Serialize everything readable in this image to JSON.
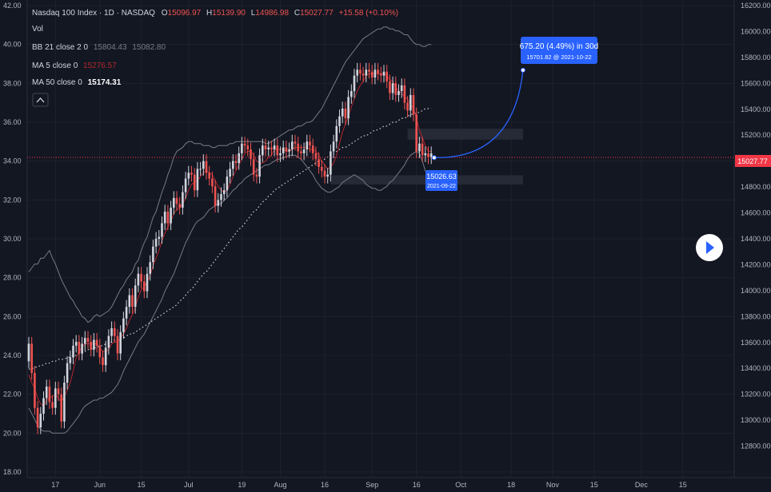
{
  "header": {
    "symbol": "Nasdaq 100 Index · 1D · NASDAQ",
    "ohlc": {
      "o_label": "O",
      "o": "15096.97",
      "h_label": "H",
      "h": "15139.90",
      "l_label": "L",
      "l": "14986.98",
      "c_label": "C",
      "c": "15027.77",
      "change": "+15.58 (+0.10%)"
    },
    "vol_label": "Vol",
    "bb": {
      "label": "BB 21 close 2 0",
      "v1": "15804.43",
      "v2": "15082.80"
    },
    "ma5": {
      "label": "MA 5 close 0",
      "value": "15276.57"
    },
    "ma50": {
      "label": "MA 50 close 0",
      "value": "15174.31"
    }
  },
  "colors": {
    "background": "#131722",
    "up": "#d1d4dc",
    "down": "#ef5350",
    "bb_band": "#787b86",
    "ma5": "#b2262c",
    "ma50": "#d1d4dc",
    "projection": "#2962ff",
    "price_tag": "#f23645"
  },
  "annotations": {
    "projection_title": "675.20 (4.49%) in 30d",
    "projection_sub": "15701.82 @ 2021-10-22",
    "point_value": "15026.63",
    "point_date": "2021-09-22",
    "last_price": "15027.77"
  },
  "chart_data": {
    "type": "candlestick",
    "left_axis": {
      "min": 18.0,
      "max": 42.0,
      "ticks": [
        "18.00",
        "20.00",
        "22.00",
        "24.00",
        "26.00",
        "28.00",
        "30.00",
        "32.00",
        "34.00",
        "36.00",
        "38.00",
        "40.00",
        "42.00"
      ]
    },
    "right_axis": {
      "min": 12600,
      "max": 16200,
      "ticks": [
        "12800.00",
        "13000.00",
        "13200.00",
        "13400.00",
        "13600.00",
        "13800.00",
        "14000.00",
        "14200.00",
        "14400.00",
        "14600.00",
        "14800.00",
        "15000.00",
        "15200.00",
        "15400.00",
        "15600.00",
        "15800.00",
        "16000.00",
        "16200.00"
      ]
    },
    "x_axis": {
      "ticks": [
        {
          "label": "17",
          "day": 9
        },
        {
          "label": "Jun",
          "day": 24
        },
        {
          "label": "15",
          "day": 38
        },
        {
          "label": "Jul",
          "day": 54
        },
        {
          "label": "19",
          "day": 72
        },
        {
          "label": "Aug",
          "day": 85
        },
        {
          "label": "16",
          "day": 100
        },
        {
          "label": "Sep",
          "day": 116
        },
        {
          "label": "16",
          "day": 131
        },
        {
          "label": "Oct",
          "day": 146
        },
        {
          "label": "18",
          "day": 163
        },
        {
          "label": "Nov",
          "day": 177
        },
        {
          "label": "15",
          "day": 191
        },
        {
          "label": "Dec",
          "day": 207
        },
        {
          "label": "15",
          "day": 221
        }
      ]
    },
    "last_day": 137,
    "closes": [
      24.6,
      23.1,
      21.3,
      20.3,
      21.0,
      21.8,
      22.4,
      21.6,
      21.3,
      22.3,
      22.0,
      20.6,
      22.6,
      23.6,
      23.9,
      24.5,
      24.7,
      24.1,
      24.6,
      24.9,
      24.7,
      24.3,
      24.8,
      24.5,
      23.9,
      23.5,
      24.4,
      25.0,
      25.4,
      25.0,
      24.1,
      25.2,
      25.9,
      26.5,
      27.1,
      26.5,
      27.6,
      28.2,
      27.8,
      27.3,
      28.2,
      28.8,
      29.6,
      30.0,
      30.1,
      30.8,
      31.4,
      30.8,
      31.6,
      32.1,
      31.8,
      31.6,
      32.4,
      33.1,
      33.4,
      33.3,
      32.5,
      33.6,
      33.6,
      34.0,
      33.4,
      33.1,
      32.7,
      31.7,
      32.0,
      32.3,
      32.5,
      33.2,
      33.6,
      34.0,
      33.9,
      34.4,
      34.9,
      34.8,
      34.6,
      34.1,
      33.3,
      33.2,
      34.3,
      34.8,
      34.6,
      34.7,
      34.6,
      34.8,
      34.3,
      34.4,
      34.7,
      34.5,
      34.6,
      35.0,
      34.9,
      34.5,
      34.4,
      34.6,
      35.0,
      34.8,
      34.4,
      34.1,
      33.7,
      33.5,
      33.2,
      33.3,
      34.5,
      35.0,
      35.8,
      36.3,
      36.7,
      36.2,
      37.3,
      37.6,
      38.4,
      38.7,
      38.5,
      38.4,
      38.7,
      38.6,
      38.3,
      38.7,
      38.5,
      38.4,
      38.6,
      38.1,
      37.5,
      38.0,
      37.4,
      37.6,
      37.9,
      37.0,
      36.6,
      37.4,
      36.4,
      34.5,
      34.9,
      34.3,
      34.4,
      34.2,
      34.4
    ],
    "bb_upper": [
      28.3,
      28.5,
      28.7,
      28.7,
      29.0,
      29.0,
      29.2,
      29.4,
      29.0,
      28.7,
      28.3,
      27.9,
      27.6,
      27.3,
      27.0,
      26.8,
      26.5,
      26.3,
      26.0,
      25.9,
      25.7,
      25.8,
      26.0,
      26.1,
      26.0,
      26.1,
      26.2,
      26.3,
      26.5,
      26.8,
      27.1,
      27.4,
      27.6,
      27.9,
      28.1,
      28.3,
      28.7,
      28.9,
      29.4,
      29.8,
      30.1,
      30.6,
      31.1,
      31.4,
      31.9,
      32.4,
      32.8,
      33.3,
      33.7,
      34.2,
      34.5,
      34.6,
      34.7,
      34.9,
      35.0,
      35.0,
      34.9,
      34.9,
      34.9,
      34.8,
      34.8,
      34.8,
      34.7,
      34.7,
      34.8,
      34.8,
      34.8,
      34.8,
      34.9,
      34.9,
      35.0,
      35.0,
      35.0,
      35.0,
      35.0,
      35.0,
      35.0,
      35.0,
      35.0,
      35.0,
      34.9,
      34.9,
      35.0,
      35.1,
      35.2,
      35.3,
      35.4,
      35.5,
      35.6,
      35.6,
      35.7,
      35.8,
      35.8,
      35.9,
      36.0,
      36.0,
      36.1,
      36.3,
      36.5,
      36.7,
      37.0,
      37.3,
      37.6,
      37.9,
      38.2,
      38.5,
      38.8,
      39.1,
      39.3,
      39.5,
      39.7,
      39.9,
      40.1,
      40.3,
      40.4,
      40.5,
      40.6,
      40.7,
      40.8,
      40.8,
      40.9,
      40.9,
      40.8,
      40.8,
      40.7,
      40.7,
      40.6,
      40.5,
      40.5,
      40.3,
      40.1,
      40.0,
      40.0,
      39.9,
      39.9,
      40.0,
      40.0
    ],
    "bb_lower": [
      21.3,
      21.0,
      20.7,
      20.4,
      20.2,
      20.1,
      20.1,
      20.1,
      20.0,
      20.0,
      20.0,
      20.0,
      20.0,
      20.1,
      20.3,
      20.5,
      20.7,
      20.9,
      21.2,
      21.4,
      21.5,
      21.6,
      21.7,
      21.7,
      21.8,
      21.8,
      21.9,
      22.0,
      22.1,
      22.3,
      22.5,
      22.8,
      23.2,
      23.5,
      23.8,
      24.1,
      24.4,
      24.7,
      24.9,
      25.1,
      25.4,
      25.7,
      26.0,
      26.3,
      26.6,
      26.9,
      27.3,
      27.6,
      27.9,
      28.2,
      28.6,
      29.0,
      29.4,
      29.8,
      30.1,
      30.4,
      30.7,
      30.9,
      31.0,
      31.1,
      31.3,
      31.5,
      31.6,
      31.7,
      31.8,
      31.8,
      32.0,
      32.1,
      32.3,
      32.5,
      32.6,
      32.8,
      32.9,
      33.1,
      33.2,
      33.3,
      33.4,
      33.5,
      33.6,
      33.7,
      33.8,
      33.8,
      33.9,
      34.0,
      34.1,
      34.1,
      34.2,
      34.2,
      34.3,
      34.3,
      34.3,
      34.2,
      34.1,
      33.9,
      33.7,
      33.5,
      33.3,
      33.0,
      32.8,
      32.6,
      32.5,
      32.4,
      32.4,
      32.5,
      32.6,
      32.7,
      32.9,
      33.0,
      33.1,
      33.2,
      33.3,
      33.2,
      33.1,
      33.0,
      32.8,
      32.7,
      32.6,
      32.6,
      32.5,
      32.5,
      32.6,
      32.7,
      32.9,
      33.0,
      33.2,
      33.4,
      33.6,
      33.8,
      34.1,
      34.3,
      34.4,
      34.5,
      34.4,
      34.0,
      33.5,
      33.2,
      33.0
    ],
    "ma5": [
      23.0,
      22.6,
      22.3,
      21.8,
      21.5,
      21.4,
      21.7,
      21.8,
      21.9,
      22.0,
      21.8,
      21.6,
      21.9,
      22.2,
      22.6,
      23.2,
      23.9,
      24.2,
      24.4,
      24.6,
      24.6,
      24.6,
      24.6,
      24.6,
      24.4,
      24.2,
      24.2,
      24.3,
      24.6,
      24.7,
      24.7,
      24.9,
      25.1,
      25.4,
      25.8,
      26.1,
      26.5,
      27.0,
      27.4,
      27.5,
      27.8,
      28.1,
      28.6,
      29.0,
      29.4,
      29.9,
      30.3,
      30.6,
      30.9,
      31.3,
      31.5,
      31.6,
      31.8,
      32.1,
      32.5,
      32.8,
      32.9,
      33.0,
      33.2,
      33.4,
      33.5,
      33.4,
      33.3,
      33.0,
      32.7,
      32.5,
      32.4,
      32.5,
      32.8,
      33.2,
      33.5,
      33.8,
      34.1,
      34.4,
      34.5,
      34.5,
      34.3,
      34.0,
      33.9,
      33.9,
      34.0,
      34.2,
      34.3,
      34.6,
      34.6,
      34.6,
      34.6,
      34.5,
      34.5,
      34.6,
      34.7,
      34.7,
      34.7,
      34.7,
      34.7,
      34.6,
      34.6,
      34.5,
      34.3,
      34.0,
      33.8,
      33.6,
      33.7,
      33.9,
      34.3,
      34.9,
      35.5,
      35.9,
      36.3,
      36.8,
      37.2,
      37.6,
      37.9,
      38.1,
      38.4,
      38.5,
      38.5,
      38.5,
      38.5,
      38.5,
      38.5,
      38.4,
      38.2,
      38.1,
      37.8,
      37.6,
      37.5,
      37.3,
      37.2,
      36.9,
      36.7,
      36.2,
      35.6,
      35.2,
      34.8,
      34.5,
      34.5
    ],
    "ma50": [
      23.3,
      23.3,
      23.4,
      23.4,
      23.5,
      23.5,
      23.6,
      23.6,
      23.7,
      23.7,
      23.8,
      23.8,
      23.8,
      23.9,
      23.9,
      24.0,
      24.0,
      24.1,
      24.1,
      24.2,
      24.3,
      24.3,
      24.4,
      24.4,
      24.5,
      24.5,
      24.6,
      24.6,
      24.7,
      24.8,
      24.8,
      24.9,
      24.9,
      25.0,
      25.1,
      25.1,
      25.2,
      25.3,
      25.4,
      25.5,
      25.6,
      25.7,
      25.8,
      25.9,
      26.0,
      26.1,
      26.2,
      26.3,
      26.4,
      26.5,
      26.6,
      26.8,
      26.9,
      27.1,
      27.3,
      27.4,
      27.6,
      27.8,
      28.0,
      28.2,
      28.3,
      28.5,
      28.7,
      28.9,
      29.1,
      29.3,
      29.5,
      29.7,
      29.9,
      30.1,
      30.3,
      30.5,
      30.6,
      30.8,
      31.0,
      31.2,
      31.4,
      31.5,
      31.7,
      31.9,
      32.0,
      32.2,
      32.3,
      32.5,
      32.6,
      32.7,
      32.8,
      32.9,
      33.0,
      33.1,
      33.2,
      33.3,
      33.4,
      33.5,
      33.6,
      33.7,
      33.8,
      33.9,
      34.0,
      34.0,
      34.1,
      34.2,
      34.3,
      34.4,
      34.5,
      34.6,
      34.7,
      34.7,
      34.8,
      34.9,
      35.0,
      35.1,
      35.2,
      35.3,
      35.3,
      35.4,
      35.5,
      35.6,
      35.6,
      35.7,
      35.8,
      35.8,
      35.9,
      36.0,
      36.0,
      36.1,
      36.2,
      36.2,
      36.3,
      36.4,
      36.4,
      36.5,
      36.5,
      36.6,
      36.7,
      36.7,
      36.7
    ],
    "projection": {
      "from_day": 137,
      "to_day": 167,
      "from_price": 15026.63,
      "to_price": 15701.82
    },
    "zones": [
      {
        "from_day": 128,
        "to_day": 167,
        "price_low": 15165,
        "price_high": 15250
      },
      {
        "from_day": 102,
        "to_day": 167,
        "price_low": 14820,
        "price_high": 14890
      }
    ]
  }
}
